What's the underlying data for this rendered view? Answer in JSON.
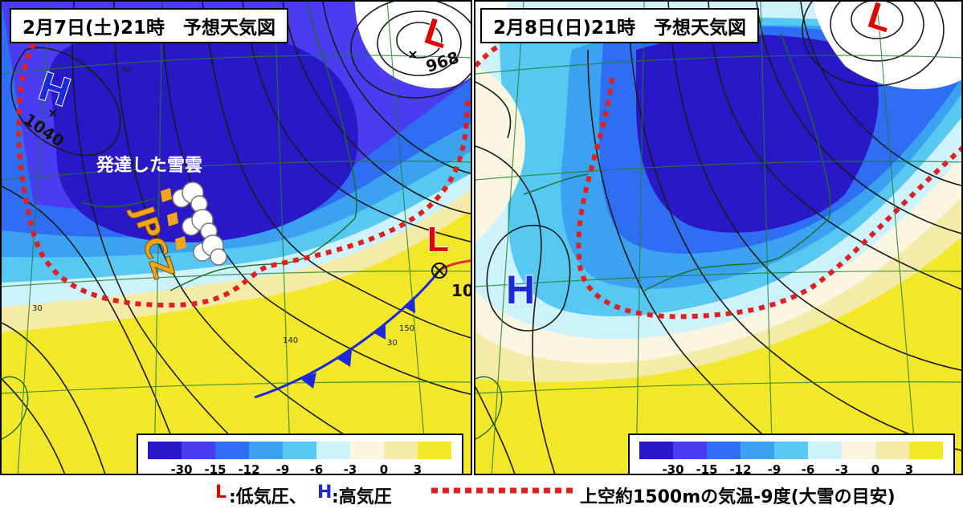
{
  "panels": [
    {
      "title": "2月7日(土)21時　予想天気図",
      "symbols": {
        "high": "H",
        "low_north": "L",
        "low_east": "L"
      },
      "pressures": {
        "high": "1040",
        "low_north": "968",
        "low_east": "10"
      },
      "annotations": {
        "snow_cloud": "発達した雪雲",
        "jpcz": "JPCZ"
      }
    },
    {
      "title": "2月8日(日)21時　予想天気図",
      "symbols": {
        "high": "H",
        "low_north": "L"
      }
    }
  ],
  "legend": {
    "labels": [
      "-30",
      "-15",
      "-12",
      "-9",
      "-6",
      "-3",
      "0",
      "3"
    ],
    "colors": [
      "#2a18c8",
      "#4a3cf0",
      "#2e6ef2",
      "#3aa2f0",
      "#56c8f2",
      "#cdf2fb",
      "#fbf6e0",
      "#f5eba8",
      "#f3e72a"
    ]
  },
  "footer": {
    "low_symbol": "L",
    "low_text": ":低気圧、",
    "high_symbol": "H",
    "high_text": ":高気圧",
    "line_text": "上空約1500mの気温-9度(大雪の目安)"
  }
}
